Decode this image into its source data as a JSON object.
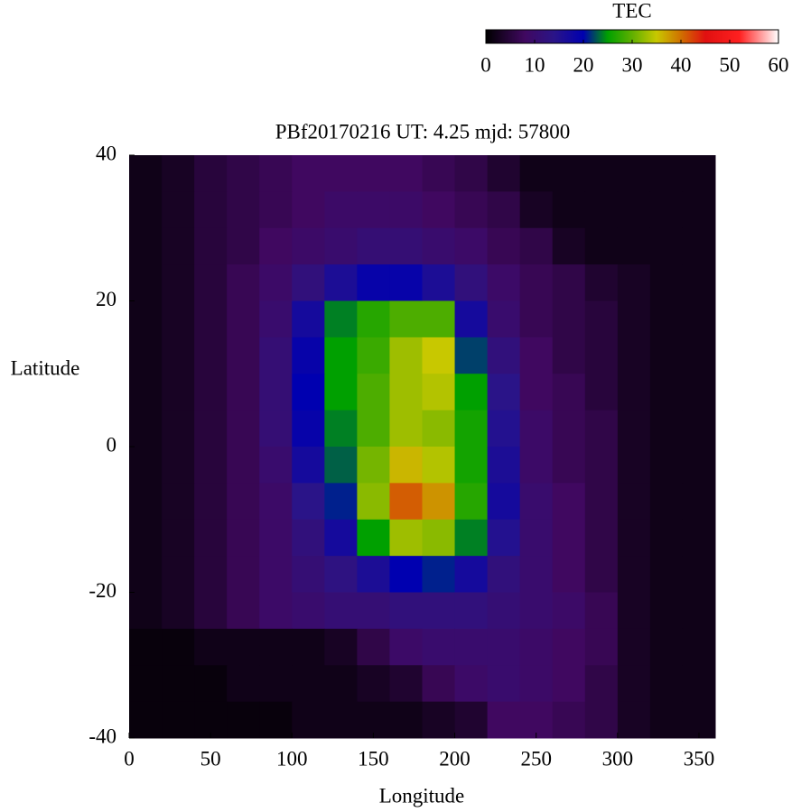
{
  "chart_data": {
    "type": "heatmap",
    "title": "PBf20170216  UT: 4.25  mjd: 57800",
    "x_label": "Longitude",
    "y_label": "Latitude",
    "xlim": [
      0,
      360
    ],
    "ylim": [
      -40,
      40
    ],
    "xticks": [
      0,
      50,
      100,
      150,
      200,
      250,
      300,
      350
    ],
    "yticks": [
      -40,
      -20,
      0,
      20,
      40
    ],
    "x": [
      10,
      30,
      50,
      70,
      90,
      110,
      130,
      150,
      170,
      190,
      210,
      230,
      250,
      270,
      290,
      310,
      330,
      350
    ],
    "y": [
      37.5,
      32.5,
      27.5,
      22.5,
      17.5,
      12.5,
      7.5,
      2.5,
      -2.5,
      -7.5,
      -12.5,
      -17.5,
      -22.5,
      -27.5,
      -32.5,
      -37.5
    ],
    "z": [
      [
        2,
        3,
        5,
        6,
        7,
        8,
        8,
        8,
        8,
        7,
        6,
        4,
        2,
        2,
        2,
        2,
        2,
        2
      ],
      [
        2,
        3,
        5,
        6,
        7,
        8,
        9,
        9,
        9,
        8,
        7,
        6,
        3,
        2,
        2,
        2,
        2,
        2
      ],
      [
        2,
        3,
        5,
        6,
        8,
        9,
        10,
        11,
        11,
        10,
        9,
        7,
        6,
        3,
        2,
        2,
        2,
        2
      ],
      [
        2,
        3,
        5,
        7,
        9,
        12,
        16,
        19,
        19,
        16,
        12,
        9,
        7,
        6,
        4,
        3,
        2,
        2
      ],
      [
        2,
        3,
        5,
        7,
        10,
        17,
        24,
        27,
        29,
        29,
        17,
        10,
        7,
        6,
        5,
        3,
        2,
        2
      ],
      [
        2,
        3,
        5,
        7,
        11,
        19,
        25,
        28,
        33,
        35,
        22,
        12,
        8,
        6,
        5,
        3,
        2,
        2
      ],
      [
        2,
        3,
        5,
        7,
        11,
        20,
        25,
        29,
        33,
        34,
        25,
        14,
        8,
        7,
        5,
        3,
        2,
        2
      ],
      [
        2,
        3,
        5,
        7,
        11,
        19,
        24,
        29,
        33,
        32,
        26,
        15,
        9,
        7,
        6,
        3,
        2,
        2
      ],
      [
        2,
        3,
        5,
        7,
        10,
        17,
        23,
        31,
        36,
        34,
        26,
        16,
        9,
        7,
        6,
        3,
        2,
        2
      ],
      [
        2,
        3,
        5,
        7,
        9,
        14,
        21,
        32,
        41,
        38,
        27,
        17,
        10,
        8,
        6,
        3,
        2,
        2
      ],
      [
        2,
        3,
        5,
        7,
        9,
        12,
        17,
        25,
        33,
        32,
        24,
        15,
        10,
        8,
        6,
        3,
        2,
        2
      ],
      [
        2,
        3,
        5,
        7,
        9,
        11,
        13,
        16,
        20,
        21,
        17,
        12,
        10,
        8,
        6,
        3,
        2,
        2
      ],
      [
        2,
        3,
        5,
        7,
        9,
        10,
        11,
        11,
        12,
        12,
        12,
        11,
        10,
        9,
        7,
        3,
        2,
        2
      ],
      [
        1,
        1,
        2,
        2,
        2,
        2,
        3,
        6,
        9,
        10,
        10,
        10,
        9,
        8,
        7,
        3,
        2,
        2
      ],
      [
        1,
        1,
        1,
        2,
        2,
        2,
        2,
        3,
        4,
        7,
        9,
        10,
        9,
        8,
        6,
        3,
        2,
        2
      ],
      [
        1,
        1,
        1,
        1,
        1,
        2,
        2,
        2,
        2,
        3,
        4,
        8,
        8,
        7,
        6,
        3,
        2,
        2
      ]
    ],
    "colorscale": [
      [
        0,
        "#000000"
      ],
      [
        8,
        "#400860"
      ],
      [
        14,
        "#2a1488"
      ],
      [
        20,
        "#0000b0"
      ],
      [
        25,
        "#00a000"
      ],
      [
        30,
        "#60b000"
      ],
      [
        35,
        "#c8c800"
      ],
      [
        40,
        "#d07000"
      ],
      [
        45,
        "#e01010"
      ],
      [
        52,
        "#ff2020"
      ],
      [
        60,
        "#ffffff"
      ]
    ],
    "colorbar": {
      "label": "TEC",
      "lim": [
        0,
        60
      ],
      "ticks": [
        0,
        10,
        20,
        30,
        40,
        50,
        60
      ]
    }
  }
}
